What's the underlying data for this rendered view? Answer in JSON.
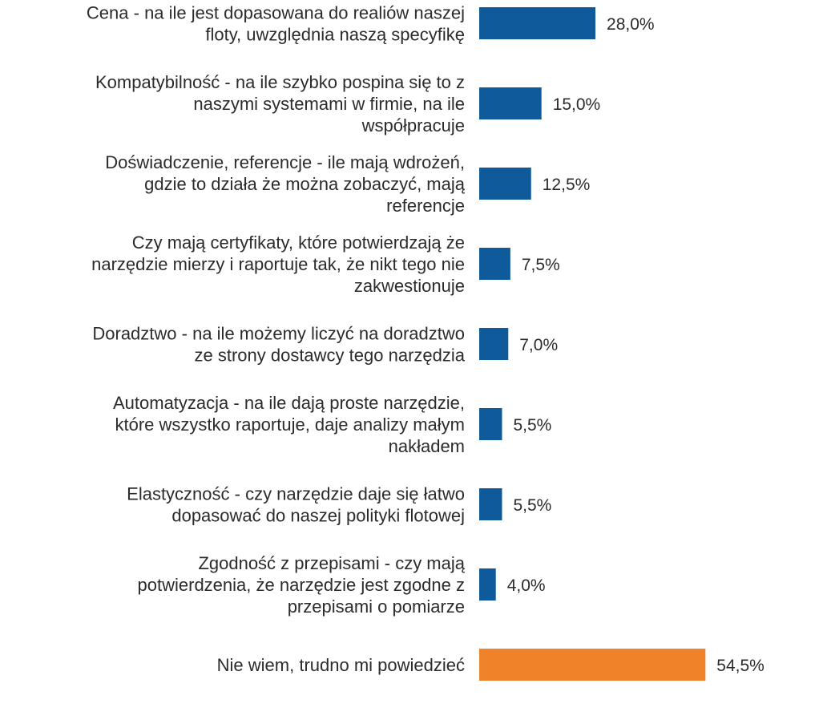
{
  "chart_data": {
    "type": "bar",
    "orientation": "horizontal",
    "title": "",
    "xlabel": "",
    "ylabel": "",
    "xlim": [
      0,
      56
    ],
    "grid": false,
    "legend": "none",
    "colors": {
      "default": "#0f5a9a",
      "highlight": "#f0832a"
    },
    "categories": [
      [
        "Cena - na ile jest dopasowana do realiów naszej",
        "floty, uwzględnia naszą specyfikę"
      ],
      [
        "Kompatybilność  - na ile szybko pospina się to z",
        "naszymi systemami w firmie, na ile",
        "współpracuje"
      ],
      [
        "Doświadczenie, referencje - ile mają wdrożeń,",
        "gdzie to działa że można zobaczyć, mają",
        "referencje"
      ],
      [
        "Czy mają certyfikaty, które potwierdzają że",
        "narzędzie mierzy i raportuje tak, że nikt tego nie",
        "zakwestionuje"
      ],
      [
        "Doradztwo  - na ile możemy liczyć na doradztwo",
        "ze strony dostawcy tego narzędzia"
      ],
      [
        "Automatyzacja - na ile dają proste narzędzie,",
        "które wszystko raportuje, daje analizy małym",
        "nakładem"
      ],
      [
        "Elastyczność - czy narzędzie daje się łatwo",
        "dopasować do naszej polityki flotowej"
      ],
      [
        "Zgodność z przepisami - czy mają",
        "potwierdzenia, że narzędzie jest zgodne z",
        "przepisami o pomiarze"
      ],
      [
        "Nie wiem, trudno mi powiedzieć"
      ]
    ],
    "values": [
      28.0,
      15.0,
      12.5,
      7.5,
      7.0,
      5.5,
      5.5,
      4.0,
      54.5
    ],
    "value_labels": [
      "28,0%",
      "15,0%",
      "12,5%",
      "7,5%",
      "7,0%",
      "5,5%",
      "5,5%",
      "4,0%",
      "54,5%"
    ],
    "highlight_index": 8
  }
}
